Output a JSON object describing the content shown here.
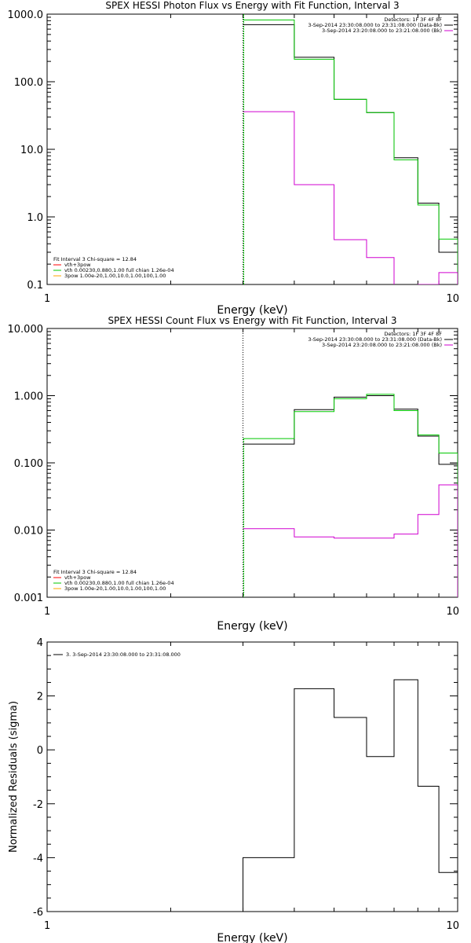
{
  "chart_data": [
    {
      "type": "line",
      "title": "SPEX HESSI Photon Flux vs Energy with Fit Function, Interval 3",
      "xlabel": "Energy (keV)",
      "ylabel": "",
      "xscale": "log",
      "yscale": "log",
      "xlim": [
        1,
        10
      ],
      "ylim": [
        0.1,
        1000
      ],
      "x_ticks": [
        "1",
        "10"
      ],
      "y_ticks": [
        "0.1",
        "1.0",
        "10.0",
        "100.0",
        "1000.0"
      ],
      "y_tick_values": [
        0.1,
        1,
        10,
        100,
        1000
      ],
      "edges": [
        3.0,
        4.0,
        5.0,
        6.0,
        7.0,
        8.0,
        9.0,
        10.0
      ],
      "marker_x": 3.0,
      "series": [
        {
          "color": "#000000",
          "values": [
            700,
            230,
            55,
            35,
            7.5,
            1.6,
            0.3
          ]
        },
        {
          "color": "#00c800",
          "values": [
            820,
            215,
            55,
            35,
            7.0,
            1.5,
            0.47
          ]
        },
        {
          "color": "#d000d0",
          "values": [
            36,
            3.0,
            0.46,
            0.25,
            0.095,
            0.1,
            0.15
          ]
        }
      ],
      "legend_top": {
        "header": "Detectors: 1F 3F 4F 8F",
        "entries": [
          {
            "label": "3-Sep-2014 23:30:08.000 to 23:31:08.000 (Data-Bk)",
            "color": "#000000"
          }
        ],
        "extra": [
          {
            "label": "3-Sep-2014 23:20:08.000 to 23:21:08.000 (Bk)",
            "color": "#d000d0"
          }
        ]
      },
      "legend_bottom": {
        "header": "Fit Interval 3   Chi-square = 12.84",
        "entries": [
          {
            "label": "vth+3pow",
            "color": "#ff0000"
          },
          {
            "label": "vth 0.00230,0.880,1.00  full chian 1.26e-04",
            "color": "#00c800"
          },
          {
            "label": "3pow 1.00e-20,1.00,10.0,1.00,100,1.00",
            "color": "#ffa500"
          }
        ]
      }
    },
    {
      "type": "line",
      "title": "SPEX HESSI Count Flux vs Energy with Fit Function, Interval 3",
      "xlabel": "Energy (keV)",
      "ylabel": "",
      "xscale": "log",
      "yscale": "log",
      "xlim": [
        1,
        10
      ],
      "ylim": [
        0.001,
        10
      ],
      "x_ticks": [
        "1",
        "10"
      ],
      "y_ticks": [
        "0.001",
        "0.010",
        "0.100",
        "1.000",
        "10.000"
      ],
      "y_tick_values": [
        0.001,
        0.01,
        0.1,
        1,
        10
      ],
      "edges": [
        3.0,
        4.0,
        5.0,
        6.0,
        7.0,
        8.0,
        9.0,
        10.0
      ],
      "marker_x": 3.0,
      "series": [
        {
          "color": "#000000",
          "values": [
            0.19,
            0.62,
            0.95,
            1.0,
            0.63,
            0.25,
            0.095
          ]
        },
        {
          "color": "#00c800",
          "values": [
            0.23,
            0.58,
            0.9,
            1.05,
            0.6,
            0.26,
            0.14
          ]
        },
        {
          "color": "#d000d0",
          "values": [
            0.0105,
            0.0079,
            0.0076,
            0.0076,
            0.0087,
            0.017,
            0.047
          ]
        }
      ],
      "legend_top": {
        "header": "Detectors: 1F 3F 4F 8F",
        "entries": [
          {
            "label": "3-Sep-2014 23:30:08.000 to 23:31:08.000 (Data-Bk)",
            "color": "#000000"
          },
          {
            "label": "3-Sep-2014 23:20:08.000 to 23:21:08.000 (Bk)",
            "color": "#d000d0"
          }
        ]
      },
      "legend_bottom": {
        "header": "Fit Interval 3   Chi-square = 12.84",
        "entries": [
          {
            "label": "vth+3pow",
            "color": "#ff0000"
          },
          {
            "label": "vth 0.00230,0.880,1.00  full chian 1.26e-04",
            "color": "#00c800"
          },
          {
            "label": "3pow 1.00e-20,1.00,10.0,1.00,100,1.00",
            "color": "#ffa500"
          }
        ]
      }
    },
    {
      "type": "line",
      "title": "",
      "xlabel": "Energy (keV)",
      "ylabel": "Normalized Residuals (sigma)",
      "xscale": "log",
      "yscale": "linear",
      "xlim": [
        1,
        10
      ],
      "ylim": [
        -6,
        4
      ],
      "x_ticks": [
        "1",
        "10"
      ],
      "y_ticks": [
        "-6",
        "-4",
        "-2",
        "0",
        "2",
        "4"
      ],
      "y_tick_values": [
        -6,
        -4,
        -2,
        0,
        2,
        4
      ],
      "edges": [
        3.0,
        4.0,
        5.0,
        6.0,
        7.0,
        8.0,
        9.0,
        10.0
      ],
      "series": [
        {
          "color": "#000000",
          "values": [
            -4.0,
            2.27,
            1.2,
            -0.25,
            2.6,
            -1.35,
            -4.55
          ]
        }
      ],
      "legend_top": {
        "header": "",
        "entries": [
          {
            "label": "3.  3-Sep-2014 23:30:08.000 to 23:31:08.000",
            "color": "#000000"
          }
        ]
      }
    }
  ]
}
